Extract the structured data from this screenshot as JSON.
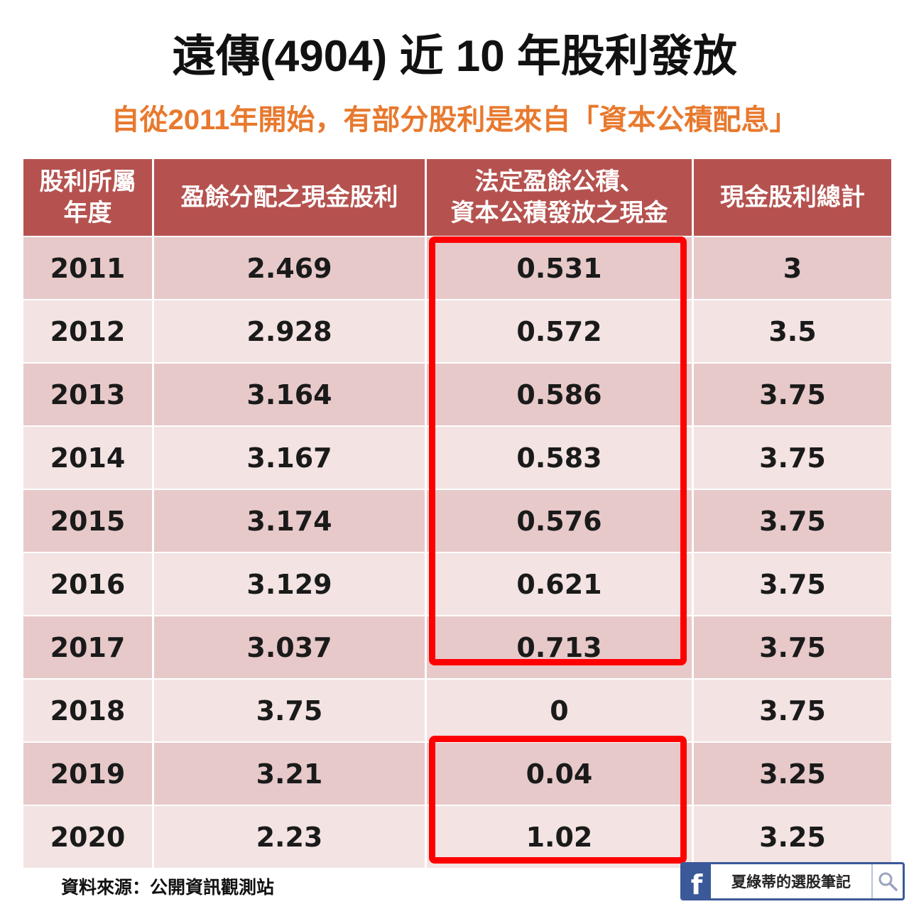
{
  "title": "遠傳(4904) 近 10 年股利發放",
  "subtitle": "自從2011年開始，有部分股利是來自「資本公積配息」",
  "chart_data": {
    "type": "table",
    "columns": [
      [
        "股利所屬",
        "年度"
      ],
      [
        "盈餘分配之現金股利"
      ],
      [
        "法定盈餘公積、",
        "資本公積發放之現金"
      ],
      [
        "現金股利總計"
      ]
    ],
    "rows": [
      [
        "2011",
        "2.469",
        "0.531",
        "3"
      ],
      [
        "2012",
        "2.928",
        "0.572",
        "3.5"
      ],
      [
        "2013",
        "3.164",
        "0.586",
        "3.75"
      ],
      [
        "2014",
        "3.167",
        "0.583",
        "3.75"
      ],
      [
        "2015",
        "3.174",
        "0.576",
        "3.75"
      ],
      [
        "2016",
        "3.129",
        "0.621",
        "3.75"
      ],
      [
        "2017",
        "3.037",
        "0.713",
        "3.75"
      ],
      [
        "2018",
        "3.75",
        "0",
        "3.75"
      ],
      [
        "2019",
        "3.21",
        "0.04",
        "3.25"
      ],
      [
        "2020",
        "2.23",
        "1.02",
        "3.25"
      ]
    ],
    "highlighted_ranges": [
      {
        "column": 2,
        "from_year": "2011",
        "to_year": "2017"
      },
      {
        "column": 2,
        "from_year": "2019",
        "to_year": "2020"
      }
    ]
  },
  "colors": {
    "header_bg": "#b5524f",
    "row_dark": "#e7c9ca",
    "row_light": "#f3e3e3",
    "subtitle": "#e8792e",
    "highlight": "#ff0000",
    "facebook": "#3b5998"
  },
  "footer": {
    "source": "資料來源：公開資訊觀測站",
    "badge_icon": "facebook-icon",
    "badge_name": "夏綠蒂的選股筆記",
    "badge_search_icon": "search-icon"
  }
}
